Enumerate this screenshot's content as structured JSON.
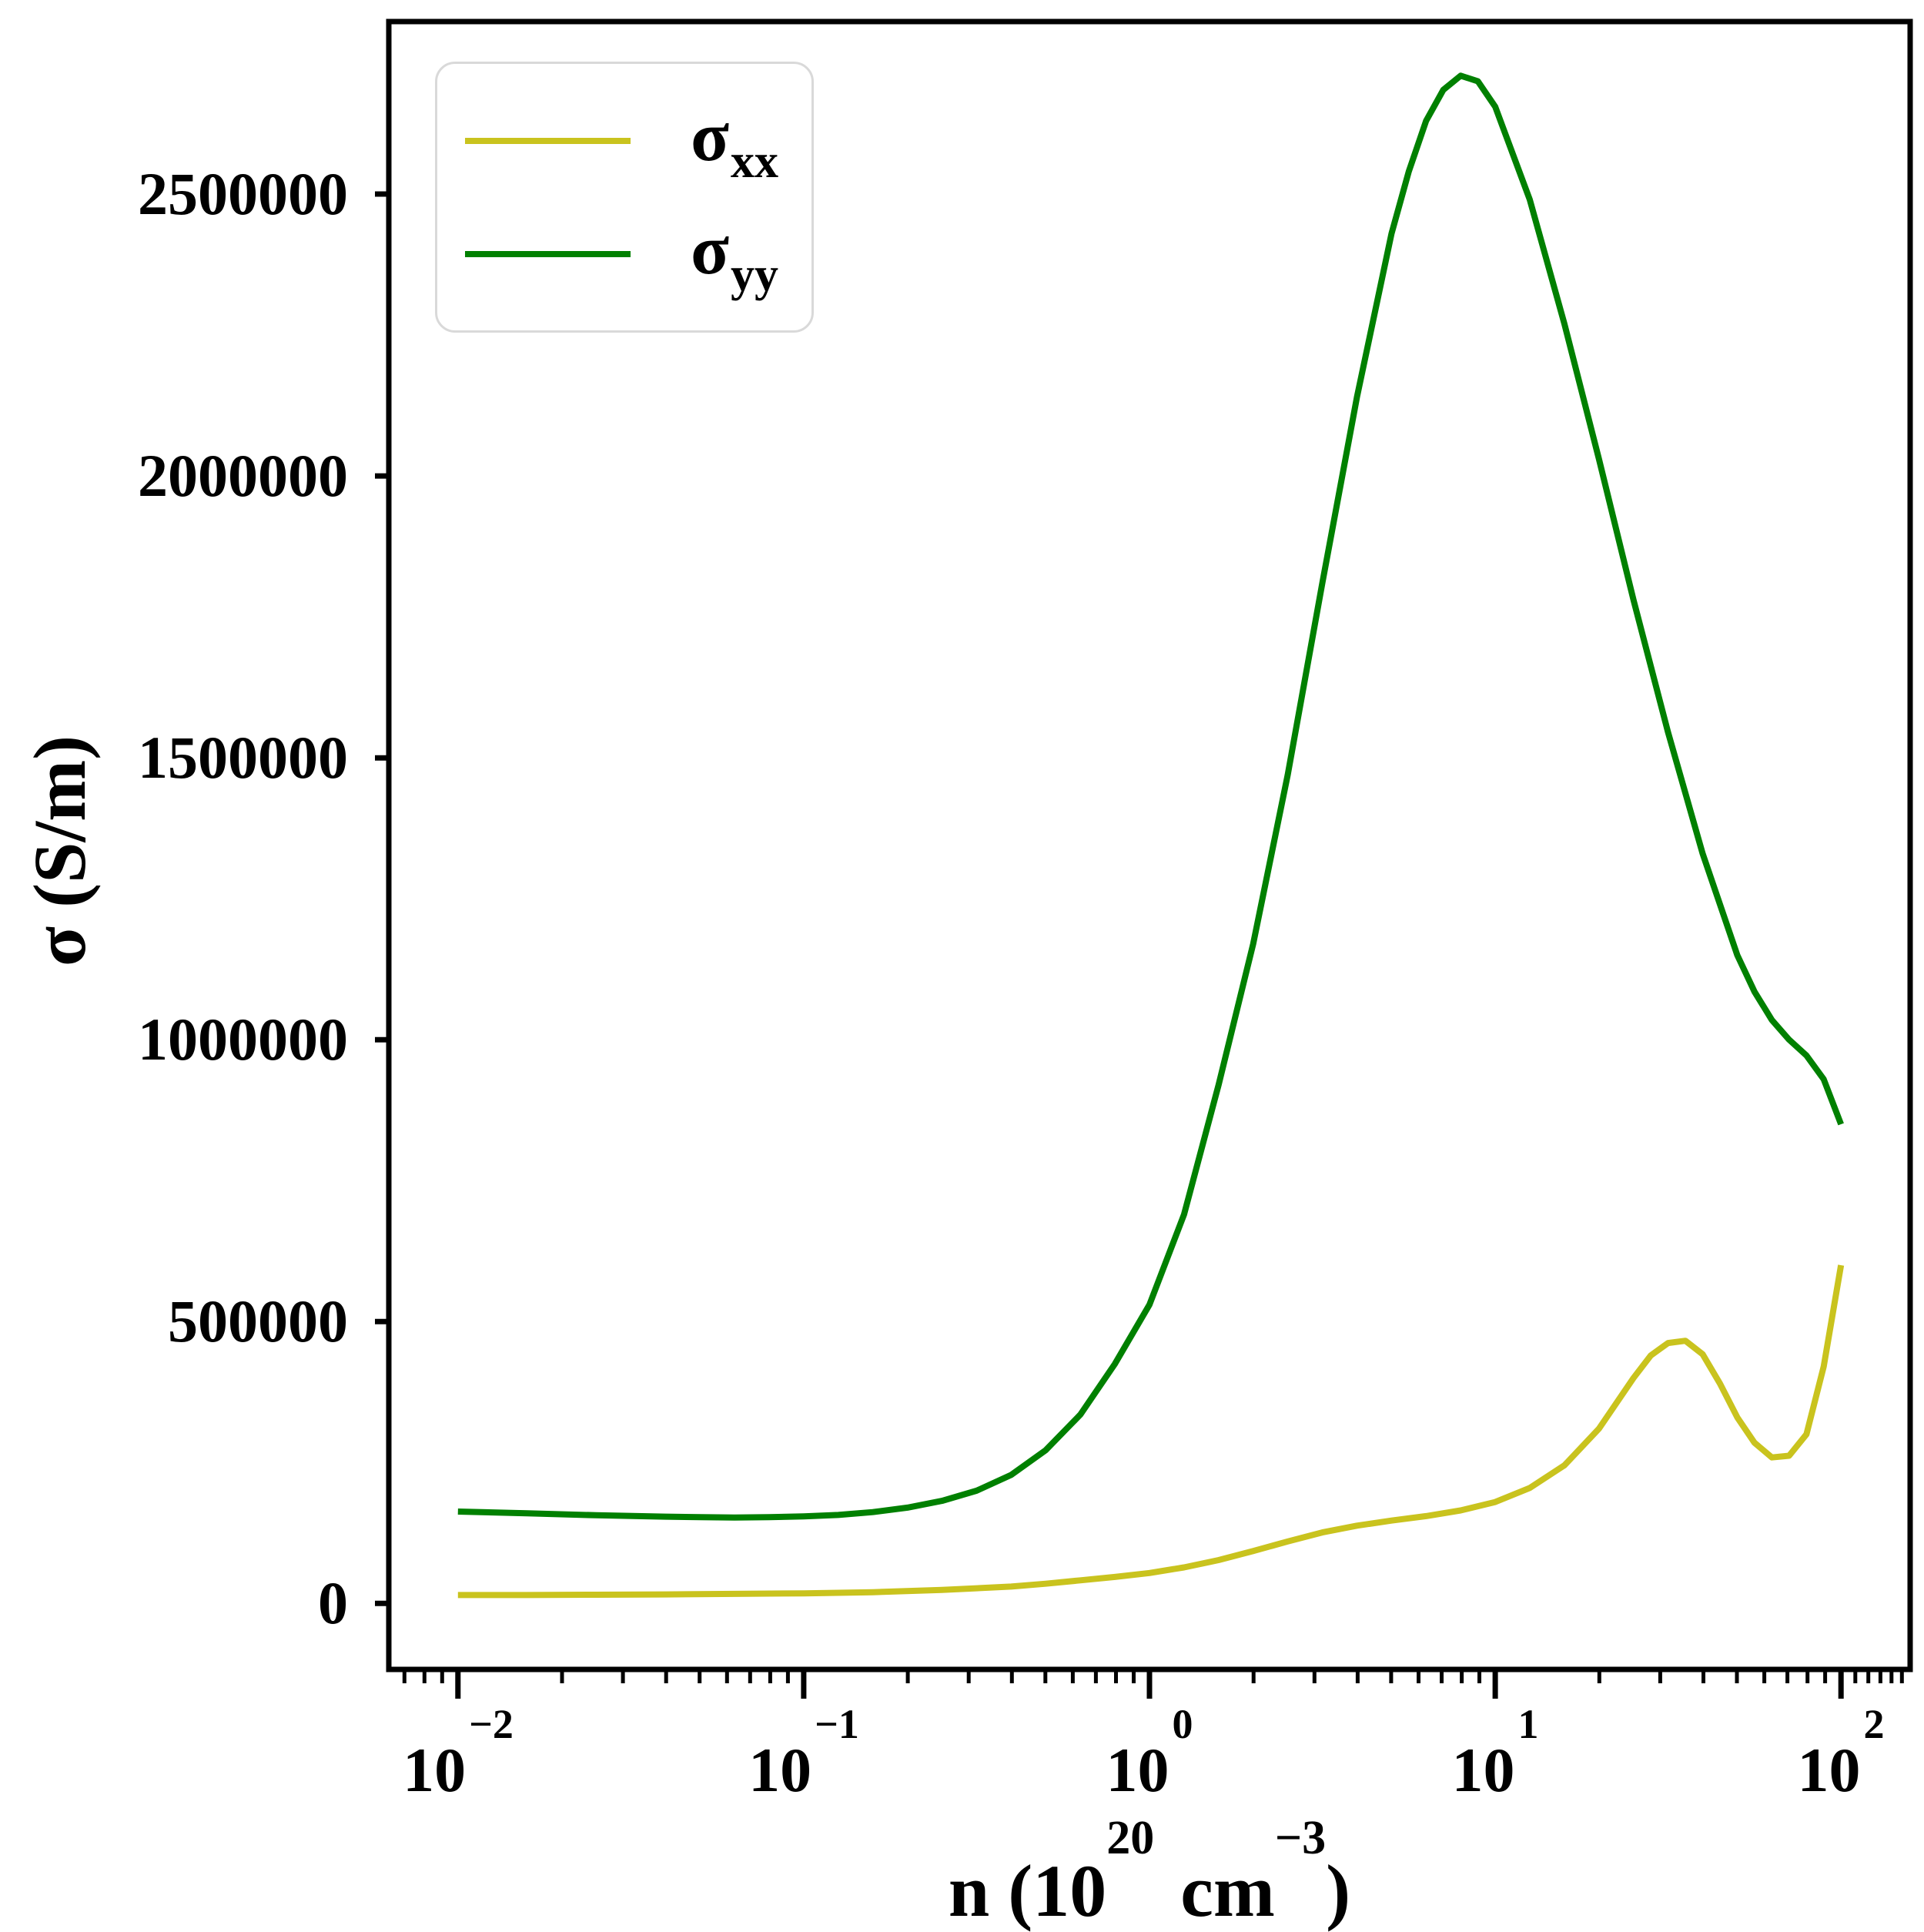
{
  "figure": {
    "background": "#ffffff",
    "frame_color": "#000000",
    "text_color": "#000000"
  },
  "axes": {
    "y_label": "σ (S/m)",
    "x_label": {
      "pre": "n (10",
      "exp1": "20",
      "mid": "cm",
      "exp2": "−3",
      "post": ")"
    },
    "y_tick_labels": [
      "0",
      "500000",
      "1000000",
      "1500000",
      "2000000",
      "2500000"
    ],
    "x_tick_labels": [
      {
        "base": "10",
        "exp": "−2"
      },
      {
        "base": "10",
        "exp": "−1"
      },
      {
        "base": "10",
        "exp": "0"
      },
      {
        "base": "10",
        "exp": "1"
      },
      {
        "base": "10",
        "exp": "2"
      }
    ]
  },
  "legend": {
    "entries": [
      {
        "symbol": "σ",
        "sub": "xx",
        "color": "#c9c31e"
      },
      {
        "symbol": "σ",
        "sub": "yy",
        "color": "#008000"
      }
    ]
  },
  "chart_data": {
    "type": "line",
    "title": "",
    "xlabel": "n (10^20 cm^-3)",
    "ylabel": "σ (S/m)",
    "x_scale": "log",
    "grid": false,
    "legend_position": "upper-left",
    "xlim_log10": [
      -2.2,
      2.2
    ],
    "ylim": [
      -117000,
      2806000
    ],
    "x_major_ticks": [
      0.01,
      0.1,
      1,
      10,
      100
    ],
    "x_extra_minor_ticks": [
      110,
      120,
      130,
      140,
      150
    ],
    "y_major_ticks": [
      0,
      500000,
      1000000,
      1500000,
      2000000,
      2500000
    ],
    "series": [
      {
        "name": "σ_xx",
        "color": "#c9c31e",
        "x_log10": [
          -2.0,
          -1.8,
          -1.6,
          -1.4,
          -1.2,
          -1.0,
          -0.8,
          -0.6,
          -0.4,
          -0.3,
          -0.2,
          -0.1,
          0.0,
          0.1,
          0.2,
          0.3,
          0.4,
          0.5,
          0.6,
          0.7,
          0.8,
          0.9,
          1.0,
          1.1,
          1.2,
          1.3,
          1.4,
          1.45,
          1.5,
          1.55,
          1.6,
          1.65,
          1.7,
          1.75,
          1.8,
          1.85,
          1.9,
          1.95,
          2.0
        ],
        "y": [
          15000,
          15000,
          15500,
          16000,
          17000,
          18000,
          20000,
          24000,
          30000,
          35000,
          41000,
          47000,
          54000,
          64000,
          77000,
          93000,
          110000,
          126000,
          138000,
          147000,
          155000,
          165000,
          180000,
          205000,
          245000,
          310000,
          400000,
          440000,
          462000,
          466000,
          442000,
          390000,
          330000,
          285000,
          259000,
          262000,
          300000,
          420000,
          600000
        ]
      },
      {
        "name": "σ_yy",
        "color": "#008000",
        "x_log10": [
          -2.0,
          -1.8,
          -1.6,
          -1.4,
          -1.3,
          -1.2,
          -1.1,
          -1.0,
          -0.9,
          -0.8,
          -0.7,
          -0.6,
          -0.5,
          -0.4,
          -0.3,
          -0.2,
          -0.1,
          0.0,
          0.1,
          0.2,
          0.3,
          0.4,
          0.5,
          0.6,
          0.7,
          0.75,
          0.8,
          0.85,
          0.9,
          0.95,
          1.0,
          1.1,
          1.2,
          1.3,
          1.4,
          1.5,
          1.6,
          1.7,
          1.75,
          1.8,
          1.85,
          1.9,
          1.95,
          2.0
        ],
        "y": [
          163000,
          160000,
          156500,
          154000,
          153000,
          152500,
          153000,
          154500,
          157000,
          162000,
          170000,
          182000,
          200000,
          228000,
          272000,
          335000,
          425000,
          530000,
          690000,
          920000,
          1170000,
          1470000,
          1810000,
          2140000,
          2430000,
          2540000,
          2630000,
          2685000,
          2710000,
          2700000,
          2655000,
          2490000,
          2270000,
          2030000,
          1780000,
          1545000,
          1330000,
          1150000,
          1085000,
          1035000,
          1000000,
          972000,
          930000,
          850000
        ]
      }
    ]
  }
}
